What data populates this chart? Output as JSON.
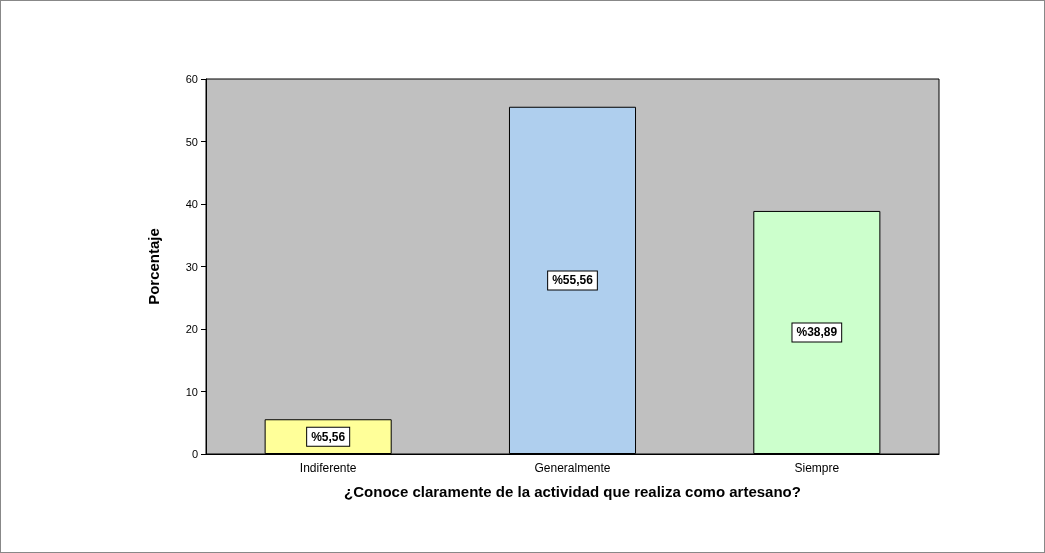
{
  "chart_data": {
    "type": "bar",
    "xlabel": "¿Conoce claramente de la actividad que realiza como artesano?",
    "ylabel": "Porcentaje",
    "categories": [
      "Indiferente",
      "Generalmente",
      "Siempre"
    ],
    "values": [
      5.56,
      55.56,
      38.89
    ],
    "value_labels": [
      "%5,56",
      "%55,56",
      "%38,89"
    ],
    "colors": [
      "#ffff99",
      "#afcfee",
      "#ccffcc"
    ],
    "ylim": [
      0,
      60
    ],
    "yticks": [
      0,
      10,
      20,
      30,
      40,
      50,
      60
    ],
    "grid": false
  }
}
